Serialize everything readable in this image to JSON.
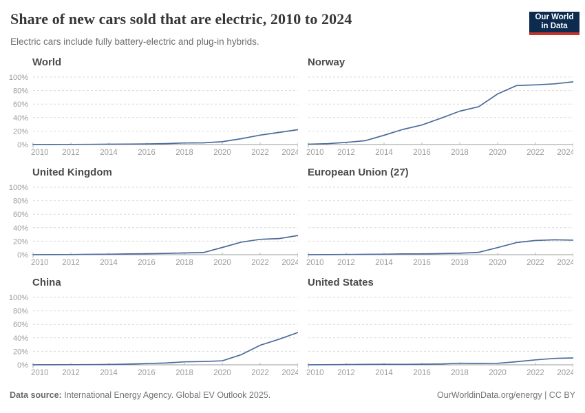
{
  "header": {
    "title": "Share of new cars sold that are electric, 2010 to 2024",
    "subtitle": "Electric cars include fully battery-electric and plug-in hybrids.",
    "logo": {
      "line1": "Our World",
      "line2": "in Data",
      "bg_color": "#0c2b4e",
      "accent_color": "#c8332b"
    }
  },
  "chart_data": {
    "type": "line",
    "x": [
      2010,
      2011,
      2012,
      2013,
      2014,
      2015,
      2016,
      2017,
      2018,
      2019,
      2020,
      2021,
      2022,
      2023,
      2024
    ],
    "x_tick_labels": [
      "2010",
      "2012",
      "2014",
      "2016",
      "2018",
      "2020",
      "2022",
      "2024"
    ],
    "x_ticks": [
      2010,
      2012,
      2014,
      2016,
      2018,
      2020,
      2022,
      2024
    ],
    "y_ticks": [
      0,
      20,
      40,
      60,
      80,
      100
    ],
    "y_tick_labels": [
      "0%",
      "20%",
      "40%",
      "60%",
      "80%",
      "100%"
    ],
    "ylim": [
      0,
      100
    ],
    "grid": true,
    "line_color": "#4c6a9c",
    "series": [
      {
        "name": "World",
        "values": [
          0.01,
          0.05,
          0.2,
          0.3,
          0.5,
          0.7,
          0.9,
          1.4,
          2.3,
          2.5,
          4.2,
          8.7,
          14,
          18,
          22
        ]
      },
      {
        "name": "Norway",
        "values": [
          0.5,
          1.3,
          3.2,
          5.7,
          13.8,
          22.5,
          29,
          39,
          49.5,
          56,
          75,
          87.5,
          88.5,
          90,
          93
        ]
      },
      {
        "name": "United Kingdom",
        "values": [
          0.05,
          0.1,
          0.2,
          0.5,
          0.7,
          1.1,
          1.4,
          1.9,
          2.6,
          3.2,
          10.7,
          18.6,
          22.8,
          23.9,
          28.5
        ]
      },
      {
        "name": "European Union (27)",
        "values": [
          0.05,
          0.15,
          0.35,
          0.5,
          0.7,
          1.2,
          1.2,
          1.6,
          2.1,
          3.5,
          10.5,
          18,
          21,
          22,
          21.5
        ]
      },
      {
        "name": "China",
        "values": [
          0.03,
          0.1,
          0.2,
          0.3,
          0.5,
          1.0,
          1.8,
          2.7,
          4.4,
          4.9,
          5.9,
          15,
          29,
          38,
          48
        ]
      },
      {
        "name": "United States",
        "values": [
          0.02,
          0.2,
          0.4,
          0.7,
          0.8,
          0.7,
          0.9,
          1.2,
          2.3,
          2.0,
          2.2,
          4.6,
          7.3,
          9.5,
          10.2
        ]
      }
    ]
  },
  "footer": {
    "source_label": "Data source:",
    "source_text": " International Energy Agency. Global EV Outlook 2025.",
    "credit": "OurWorldinData.org/energy | CC BY"
  }
}
